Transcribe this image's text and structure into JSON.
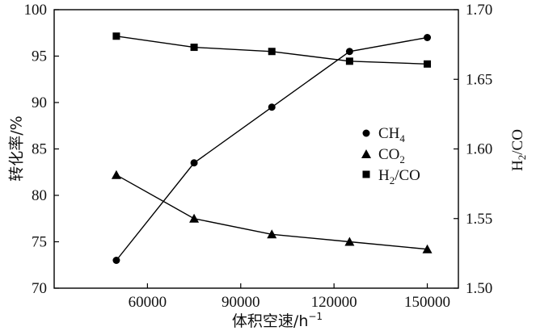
{
  "chart_data": {
    "type": "line",
    "title": "",
    "xlabel": "体积空速/h",
    "xlabel_sup": "−1",
    "ylabel_left": "转化率/%",
    "ylabel_right": "H2/CO",
    "x_ticks": [
      "60000",
      "90000",
      "120000",
      "150000"
    ],
    "x_tick_values": [
      60000,
      90000,
      120000,
      150000
    ],
    "xlim": [
      30000,
      160000
    ],
    "y_left_ticks": [
      "70",
      "75",
      "80",
      "85",
      "90",
      "95",
      "100"
    ],
    "y_left_tick_values": [
      70,
      75,
      80,
      85,
      90,
      95,
      100
    ],
    "ylim_left": [
      70,
      100
    ],
    "y_right_ticks": [
      "1.50",
      "1.55",
      "1.60",
      "1.65",
      "1.70"
    ],
    "y_right_tick_values": [
      1.5,
      1.55,
      1.6,
      1.65,
      1.7
    ],
    "ylim_right": [
      1.5,
      1.7
    ],
    "legend_position": "center-right",
    "series": [
      {
        "name": "CH4",
        "marker": "circle",
        "axis": "left",
        "x": [
          50000,
          75000,
          100000,
          125000,
          150000
        ],
        "y": [
          73.0,
          83.5,
          89.5,
          95.5,
          97.0
        ]
      },
      {
        "name": "CO2",
        "marker": "triangle",
        "axis": "left",
        "x": [
          50000,
          75000,
          100000,
          125000,
          150000
        ],
        "y": [
          82.2,
          77.5,
          75.8,
          75.0,
          74.2
        ]
      },
      {
        "name": "H2/CO",
        "marker": "square",
        "axis": "right",
        "x": [
          50000,
          75000,
          100000,
          125000,
          150000
        ],
        "y": [
          1.681,
          1.673,
          1.67,
          1.663,
          1.661
        ]
      }
    ],
    "legend": {
      "ch4": {
        "main": "CH",
        "sub": "4"
      },
      "co2": {
        "main": "CO",
        "sub": "2"
      },
      "h2co": {
        "pre": "H",
        "sub": "2",
        "post": "/CO"
      }
    }
  }
}
